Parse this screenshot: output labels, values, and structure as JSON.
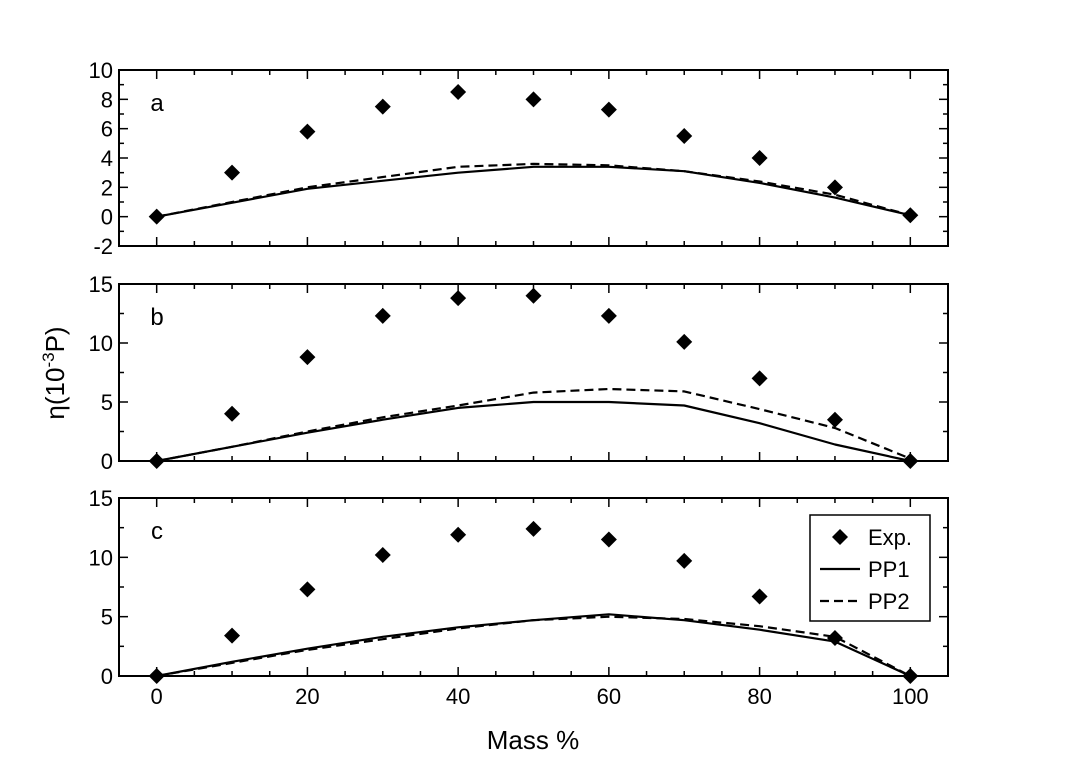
{
  "chart_data": {
    "type": "scatter",
    "xlabel": "Mass %",
    "ylabel": "η(10⁻³P)",
    "ylabel_parts": {
      "prefix": "η(10",
      "exponent": "-3",
      "suffix": "P)"
    },
    "xlim": [
      -5,
      105
    ],
    "x_ticks": [
      0,
      20,
      40,
      60,
      80,
      100
    ],
    "legend": {
      "position": "right",
      "panel": "c",
      "entries": [
        {
          "label": "Exp.",
          "style": "diamond"
        },
        {
          "label": "PP1",
          "style": "solid"
        },
        {
          "label": "PP2",
          "style": "dashed"
        }
      ]
    },
    "panels": [
      {
        "label": "a",
        "ylim": [
          -2,
          10
        ],
        "y_ticks": [
          -2,
          0,
          2,
          4,
          6,
          8,
          10
        ],
        "series": [
          {
            "name": "Exp.",
            "style": "diamond",
            "x": [
              0,
              10,
              20,
              30,
              40,
              50,
              60,
              70,
              80,
              90,
              100
            ],
            "y": [
              0.0,
              3.0,
              5.8,
              7.5,
              8.5,
              8.0,
              7.3,
              5.5,
              4.0,
              2.0,
              0.1
            ]
          },
          {
            "name": "PP1",
            "style": "solid",
            "x": [
              0,
              20,
              40,
              50,
              60,
              70,
              80,
              90,
              100
            ],
            "y": [
              0.0,
              1.9,
              3.0,
              3.4,
              3.4,
              3.1,
              2.3,
              1.3,
              0.1
            ]
          },
          {
            "name": "PP2",
            "style": "dashed",
            "x": [
              0,
              20,
              40,
              50,
              60,
              70,
              80,
              90,
              100
            ],
            "y": [
              0.0,
              2.0,
              3.4,
              3.6,
              3.5,
              3.1,
              2.4,
              1.5,
              0.1
            ]
          }
        ]
      },
      {
        "label": "b",
        "ylim": [
          0,
          15
        ],
        "y_ticks": [
          0,
          5,
          10,
          15
        ],
        "series": [
          {
            "name": "Exp.",
            "style": "diamond",
            "x": [
              0,
              10,
              20,
              30,
              40,
              50,
              60,
              70,
              80,
              90,
              100
            ],
            "y": [
              0.0,
              4.0,
              8.8,
              12.3,
              13.8,
              14.0,
              12.3,
              10.1,
              7.0,
              3.5,
              0.0
            ]
          },
          {
            "name": "PP1",
            "style": "solid",
            "x": [
              0,
              10,
              20,
              30,
              40,
              50,
              60,
              70,
              80,
              90,
              100
            ],
            "y": [
              0.0,
              1.2,
              2.4,
              3.5,
              4.5,
              5.0,
              5.0,
              4.7,
              3.2,
              1.4,
              0.0
            ]
          },
          {
            "name": "PP2",
            "style": "dashed",
            "x": [
              0,
              10,
              20,
              30,
              40,
              50,
              60,
              70,
              80,
              90,
              100
            ],
            "y": [
              0.0,
              1.2,
              2.5,
              3.7,
              4.7,
              5.8,
              6.1,
              5.9,
              4.4,
              2.8,
              0.2
            ]
          }
        ]
      },
      {
        "label": "c",
        "ylim": [
          0,
          15
        ],
        "y_ticks": [
          0,
          5,
          10,
          15
        ],
        "series": [
          {
            "name": "Exp.",
            "style": "diamond",
            "x": [
              0,
              10,
              20,
              30,
              40,
              50,
              60,
              70,
              80,
              90,
              100
            ],
            "y": [
              0.0,
              3.4,
              7.3,
              10.2,
              11.9,
              12.4,
              11.5,
              9.7,
              6.7,
              3.2,
              0.0
            ]
          },
          {
            "name": "PP1",
            "style": "solid",
            "x": [
              0,
              10,
              20,
              30,
              40,
              50,
              60,
              70,
              80,
              90,
              100
            ],
            "y": [
              0.0,
              1.2,
              2.3,
              3.3,
              4.1,
              4.7,
              5.2,
              4.7,
              3.9,
              2.9,
              0.0
            ]
          },
          {
            "name": "PP2",
            "style": "dashed",
            "x": [
              0,
              10,
              20,
              30,
              40,
              50,
              60,
              70,
              80,
              90,
              100
            ],
            "y": [
              0.0,
              1.1,
              2.2,
              3.1,
              4.0,
              4.7,
              5.0,
              4.8,
              4.2,
              3.3,
              0.0
            ]
          }
        ]
      }
    ]
  }
}
